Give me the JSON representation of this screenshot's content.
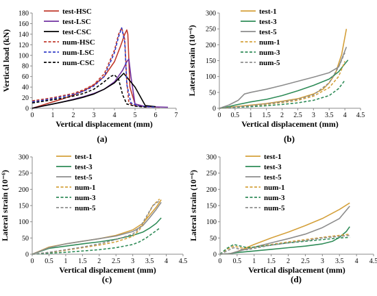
{
  "figure": {
    "panels": [
      "(a)",
      "(b)",
      "(c)",
      "(d)"
    ]
  },
  "chart_data": [
    {
      "panel_label": "(a)",
      "type": "line",
      "xlabel": "Vertical displacement (mm)",
      "ylabel": "Vertical load (kN)",
      "xlim": [
        0,
        7
      ],
      "ylim": [
        0,
        180
      ],
      "xticks": [
        "0",
        "1",
        "2",
        "3",
        "4",
        "5",
        "6",
        "7"
      ],
      "yticks": [
        "0",
        "20",
        "40",
        "60",
        "80",
        "100",
        "120",
        "140",
        "160",
        "180"
      ],
      "legend_position": "top-left",
      "series": [
        {
          "name": "test-HSC",
          "color": "#c0392b",
          "dash": false,
          "x": [
            0,
            0.5,
            1,
            1.5,
            2,
            2.5,
            3,
            3.5,
            4,
            4.3,
            4.5,
            4.6,
            4.65,
            4.75,
            5.0,
            5.5,
            6.2
          ],
          "y": [
            0,
            6,
            12,
            18,
            25,
            33,
            44,
            60,
            88,
            118,
            140,
            148,
            140,
            40,
            8,
            3,
            2
          ]
        },
        {
          "name": "test-LSC",
          "color": "#7030a0",
          "dash": false,
          "x": [
            0,
            0.5,
            1,
            1.5,
            2,
            2.5,
            3,
            3.5,
            4,
            4.4,
            4.6,
            4.7,
            4.8,
            5.0,
            5.5,
            6.6
          ],
          "y": [
            0,
            4,
            8,
            12,
            17,
            22,
            28,
            36,
            50,
            72,
            88,
            93,
            60,
            8,
            3,
            2
          ]
        },
        {
          "name": "test-CSC",
          "color": "#000000",
          "dash": false,
          "x": [
            0,
            0.5,
            1,
            1.5,
            2,
            2.5,
            3,
            3.5,
            4,
            4.3,
            4.45,
            5.0,
            5.5,
            6.0
          ],
          "y": [
            0,
            4,
            8,
            12,
            16,
            21,
            27,
            36,
            48,
            60,
            66,
            40,
            5,
            3
          ]
        },
        {
          "name": "num-HSC",
          "color": "#c0392b",
          "dash": true,
          "x": [
            0,
            0.5,
            1,
            1.5,
            2,
            2.5,
            3,
            3.5,
            4,
            4.2,
            4.35,
            4.5,
            4.6,
            4.7,
            5.0,
            5.5,
            6.0
          ],
          "y": [
            14,
            17,
            20,
            24,
            28,
            35,
            45,
            65,
            110,
            140,
            152,
            130,
            50,
            10,
            5,
            3,
            2
          ]
        },
        {
          "name": "num-LSC",
          "color": "#2e3ac7",
          "dash": true,
          "x": [
            0,
            0.5,
            1,
            1.5,
            2,
            2.5,
            3,
            3.5,
            4,
            4.2,
            4.35,
            4.5,
            4.6,
            4.8,
            5.2,
            6.0
          ],
          "y": [
            12,
            15,
            18,
            22,
            26,
            32,
            42,
            60,
            105,
            135,
            152,
            125,
            45,
            10,
            4,
            2
          ]
        },
        {
          "name": "num-CSC",
          "color": "#000000",
          "dash": true,
          "x": [
            0,
            0.5,
            1,
            1.5,
            2,
            2.5,
            3,
            3.5,
            3.8,
            4.0,
            4.2,
            4.4,
            4.6,
            5.0,
            5.6
          ],
          "y": [
            10,
            13,
            16,
            19,
            23,
            28,
            36,
            50,
            60,
            63,
            55,
            25,
            8,
            4,
            2
          ]
        }
      ]
    },
    {
      "panel_label": "(b)",
      "type": "line",
      "xlabel": "Vertical displacement (mm)",
      "ylabel": "Lateral strain (10⁻⁶)",
      "xlim": [
        0,
        4.5
      ],
      "ylim": [
        0,
        300
      ],
      "xticks": [
        "0",
        "0.5",
        "1",
        "1.5",
        "2",
        "2.5",
        "3",
        "3.5",
        "4",
        "4.5"
      ],
      "yticks": [
        "0",
        "50",
        "100",
        "150",
        "200",
        "250",
        "300"
      ],
      "legend_position": "top-left",
      "series": [
        {
          "name": "test-1",
          "color": "#d4a03a",
          "dash": false,
          "x": [
            0,
            0.5,
            1,
            1.5,
            2,
            2.5,
            3,
            3.3,
            3.5,
            3.7,
            3.9,
            4.05
          ],
          "y": [
            0,
            5,
            10,
            15,
            22,
            30,
            45,
            60,
            80,
            110,
            170,
            250
          ]
        },
        {
          "name": "test-3",
          "color": "#2e8b57",
          "dash": false,
          "x": [
            0,
            0.3,
            0.5,
            1,
            1.5,
            2,
            2.5,
            3,
            3.5,
            3.8,
            4.0,
            4.1
          ],
          "y": [
            0,
            5,
            10,
            20,
            28,
            40,
            55,
            72,
            92,
            115,
            140,
            152
          ]
        },
        {
          "name": "test-5",
          "color": "#8c8c8c",
          "dash": false,
          "x": [
            0,
            0.3,
            0.6,
            0.8,
            1.0,
            1.5,
            2,
            2.5,
            3,
            3.5,
            3.8,
            4.05
          ],
          "y": [
            0,
            10,
            25,
            45,
            50,
            60,
            72,
            85,
            98,
            112,
            130,
            193
          ]
        },
        {
          "name": "num-1",
          "color": "#d4a03a",
          "dash": true,
          "x": [
            0,
            0.5,
            1,
            1.5,
            2,
            2.5,
            3,
            3.5,
            3.8,
            4.0
          ],
          "y": [
            0,
            4,
            8,
            12,
            18,
            25,
            38,
            65,
            100,
            148
          ]
        },
        {
          "name": "num-3",
          "color": "#2e8b57",
          "dash": true,
          "x": [
            0,
            0.5,
            1,
            1.5,
            2,
            2.5,
            3,
            3.5,
            3.8,
            4.0
          ],
          "y": [
            0,
            3,
            5,
            8,
            12,
            17,
            25,
            40,
            62,
            88
          ]
        },
        {
          "name": "num-5",
          "color": "#8c8c8c",
          "dash": true,
          "x": [
            0,
            0.5,
            1,
            1.5,
            2,
            2.5,
            3,
            3.5,
            3.8,
            4.0
          ],
          "y": [
            0,
            4,
            8,
            14,
            20,
            28,
            42,
            80,
            130,
            175
          ]
        }
      ]
    },
    {
      "panel_label": "(c)",
      "type": "line",
      "xlabel": "Vertical displacement (mm)",
      "ylabel": "Lateral strain (10⁻⁶)",
      "xlim": [
        0,
        4.5
      ],
      "ylim": [
        0,
        300
      ],
      "xticks": [
        "0",
        "0.5",
        "1",
        "1.5",
        "2",
        "2.5",
        "3",
        "3.5",
        "4",
        "4.5"
      ],
      "yticks": [
        "0",
        "50",
        "100",
        "150",
        "200",
        "250",
        "300"
      ],
      "legend_position": "top-right",
      "series": [
        {
          "name": "test-1",
          "color": "#d4a03a",
          "dash": false,
          "x": [
            0,
            0.5,
            1,
            1.5,
            2,
            2.5,
            3,
            3.3,
            3.5,
            3.7,
            3.85
          ],
          "y": [
            0,
            22,
            32,
            40,
            48,
            58,
            75,
            95,
            120,
            145,
            168
          ]
        },
        {
          "name": "test-3",
          "color": "#2e8b57",
          "dash": false,
          "x": [
            0,
            0.5,
            1,
            1.5,
            2,
            2.5,
            3,
            3.3,
            3.5,
            3.7,
            3.85
          ],
          "y": [
            0,
            18,
            25,
            32,
            38,
            46,
            58,
            68,
            80,
            95,
            112
          ]
        },
        {
          "name": "test-5",
          "color": "#8c8c8c",
          "dash": false,
          "x": [
            0,
            0.5,
            1,
            1.5,
            2,
            2.5,
            3,
            3.3,
            3.5,
            3.7,
            3.85
          ],
          "y": [
            0,
            20,
            32,
            40,
            48,
            56,
            70,
            88,
            112,
            138,
            160
          ]
        },
        {
          "name": "num-1",
          "color": "#d4a03a",
          "dash": true,
          "x": [
            0,
            0.5,
            1,
            1.5,
            2,
            2.5,
            3,
            3.2,
            3.4,
            3.6,
            3.8
          ],
          "y": [
            0,
            5,
            12,
            20,
            28,
            38,
            55,
            75,
            110,
            150,
            170
          ]
        },
        {
          "name": "num-3",
          "color": "#2e8b57",
          "dash": true,
          "x": [
            0,
            0.5,
            1,
            1.5,
            2,
            2.5,
            3,
            3.2,
            3.4,
            3.6,
            3.8
          ],
          "y": [
            0,
            3,
            6,
            10,
            14,
            20,
            30,
            38,
            50,
            65,
            80
          ]
        },
        {
          "name": "num-5",
          "color": "#8c8c8c",
          "dash": true,
          "x": [
            0,
            0.5,
            1,
            1.5,
            2,
            2.5,
            3,
            3.2,
            3.4,
            3.6,
            3.8
          ],
          "y": [
            0,
            6,
            14,
            22,
            32,
            45,
            62,
            80,
            115,
            150,
            165
          ]
        }
      ]
    },
    {
      "panel_label": "(d)",
      "type": "line",
      "xlabel": "Vertical displacement (mm)",
      "ylabel": "Lateral strain (10⁻⁶)",
      "xlim": [
        0,
        4.5
      ],
      "ylim": [
        0,
        300
      ],
      "xticks": [
        "0",
        "0.5",
        "1",
        "1.5",
        "2",
        "2.5",
        "3",
        "3.5",
        "4",
        "4.5"
      ],
      "yticks": [
        "0",
        "50",
        "100",
        "150",
        "200",
        "250",
        "300"
      ],
      "legend_position": "top-right",
      "series": [
        {
          "name": "test-1",
          "color": "#d4a03a",
          "dash": false,
          "x": [
            0,
            0.3,
            0.5,
            1,
            1.5,
            2,
            2.5,
            3,
            3.5,
            3.8
          ],
          "y": [
            0,
            2,
            8,
            30,
            50,
            68,
            88,
            110,
            138,
            158
          ]
        },
        {
          "name": "test-3",
          "color": "#2e8b57",
          "dash": false,
          "x": [
            0,
            0.3,
            0.5,
            1,
            1.5,
            2,
            2.5,
            3,
            3.3,
            3.5,
            3.7,
            3.8
          ],
          "y": [
            0,
            2,
            5,
            10,
            15,
            20,
            25,
            32,
            40,
            52,
            70,
            85
          ]
        },
        {
          "name": "test-5",
          "color": "#8c8c8c",
          "dash": false,
          "x": [
            0,
            0.3,
            0.5,
            1,
            1.5,
            2,
            2.5,
            3,
            3.5,
            3.8
          ],
          "y": [
            0,
            2,
            8,
            22,
            35,
            48,
            62,
            82,
            110,
            148
          ]
        },
        {
          "name": "num-1",
          "color": "#d4a03a",
          "dash": true,
          "x": [
            0,
            0.2,
            0.4,
            0.6,
            0.8,
            1.0,
            1.5,
            2,
            2.5,
            3,
            3.5,
            3.8
          ],
          "y": [
            0,
            15,
            25,
            20,
            18,
            22,
            30,
            38,
            45,
            52,
            58,
            62
          ]
        },
        {
          "name": "num-3",
          "color": "#2e8b57",
          "dash": true,
          "x": [
            0,
            0.2,
            0.4,
            0.6,
            0.8,
            1.0,
            1.5,
            2,
            2.5,
            3,
            3.5,
            3.8
          ],
          "y": [
            0,
            18,
            30,
            25,
            20,
            22,
            28,
            35,
            40,
            45,
            50,
            52
          ]
        },
        {
          "name": "num-5",
          "color": "#8c8c8c",
          "dash": true,
          "x": [
            0,
            0.2,
            0.4,
            0.6,
            0.8,
            1.0,
            1.5,
            2,
            2.5,
            3,
            3.5,
            3.8
          ],
          "y": [
            0,
            10,
            20,
            15,
            14,
            18,
            28,
            35,
            42,
            50,
            55,
            58
          ]
        }
      ]
    }
  ]
}
